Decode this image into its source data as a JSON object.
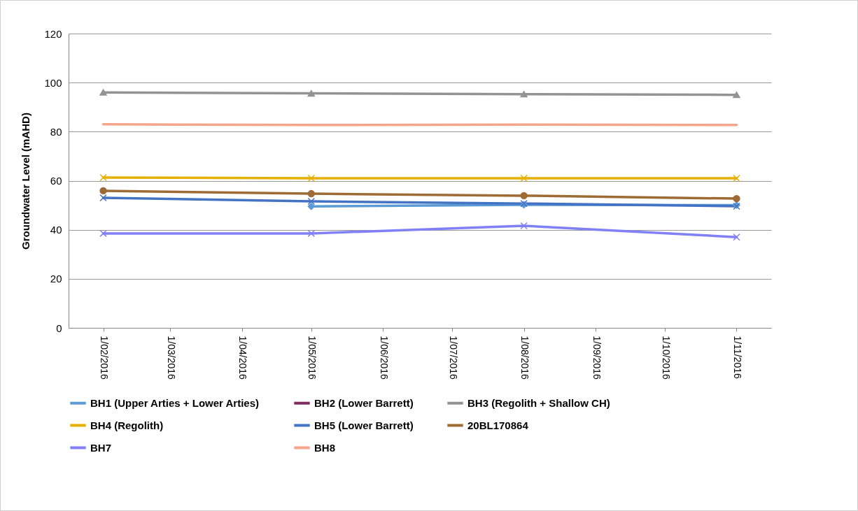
{
  "chart_data": {
    "type": "line",
    "ylabel": "Groundwater Level (mAHD)",
    "x": [
      "2016-02-01",
      "2016-05-01",
      "2016-08-01",
      "2016-11-01"
    ],
    "xlim": [
      "2016-01-17",
      "2016-11-16"
    ],
    "xticks": [
      {
        "value": "2016-02-01",
        "label": "1/02/2016"
      },
      {
        "value": "2016-03-01",
        "label": "1/03/2016"
      },
      {
        "value": "2016-04-01",
        "label": "1/04/2016"
      },
      {
        "value": "2016-05-01",
        "label": "1/05/2016"
      },
      {
        "value": "2016-06-01",
        "label": "1/06/2016"
      },
      {
        "value": "2016-07-01",
        "label": "1/07/2016"
      },
      {
        "value": "2016-08-01",
        "label": "1/08/2016"
      },
      {
        "value": "2016-09-01",
        "label": "1/09/2016"
      },
      {
        "value": "2016-10-01",
        "label": "1/10/2016"
      },
      {
        "value": "2016-11-01",
        "label": "1/11/2016"
      }
    ],
    "ylim": [
      0,
      120
    ],
    "yticks": [
      0,
      20,
      40,
      60,
      80,
      100,
      120
    ],
    "grid": "y",
    "legend": "bottom",
    "series": [
      {
        "name": "BH1 (Upper Arties + Lower Arties)",
        "color": "#5b9bd5",
        "marker": "diamond",
        "values": [
          null,
          49.5,
          50.2,
          50
        ]
      },
      {
        "name": "BH2 (Lower Barrett)",
        "color": "#7e2d5e",
        "marker": "square",
        "values": [
          null,
          null,
          null,
          null
        ]
      },
      {
        "name": "BH3 (Regolith + Shallow CH)",
        "color": "#939393",
        "marker": "triangle",
        "values": [
          96,
          95.6,
          95.3,
          95
        ]
      },
      {
        "name": "BH4 (Regolith)",
        "color": "#e5b000",
        "marker": "cross",
        "values": [
          61.3,
          61,
          61,
          61
        ]
      },
      {
        "name": "BH5 (Lower Barrett)",
        "color": "#4472c4",
        "marker": "cross",
        "values": [
          53,
          51.6,
          50.7,
          49.6
        ]
      },
      {
        "name": "20BL170864",
        "color": "#9e6b35",
        "marker": "circle",
        "values": [
          55.9,
          54.7,
          53.9,
          52.7
        ]
      },
      {
        "name": "BH7",
        "color": "#8080f8",
        "marker": "cross",
        "values": [
          38.5,
          38.5,
          41.6,
          37
        ]
      },
      {
        "name": "BH8",
        "color": "#f4a58a",
        "marker": "none",
        "values": [
          83,
          82.7,
          82.9,
          82.7
        ]
      }
    ]
  }
}
